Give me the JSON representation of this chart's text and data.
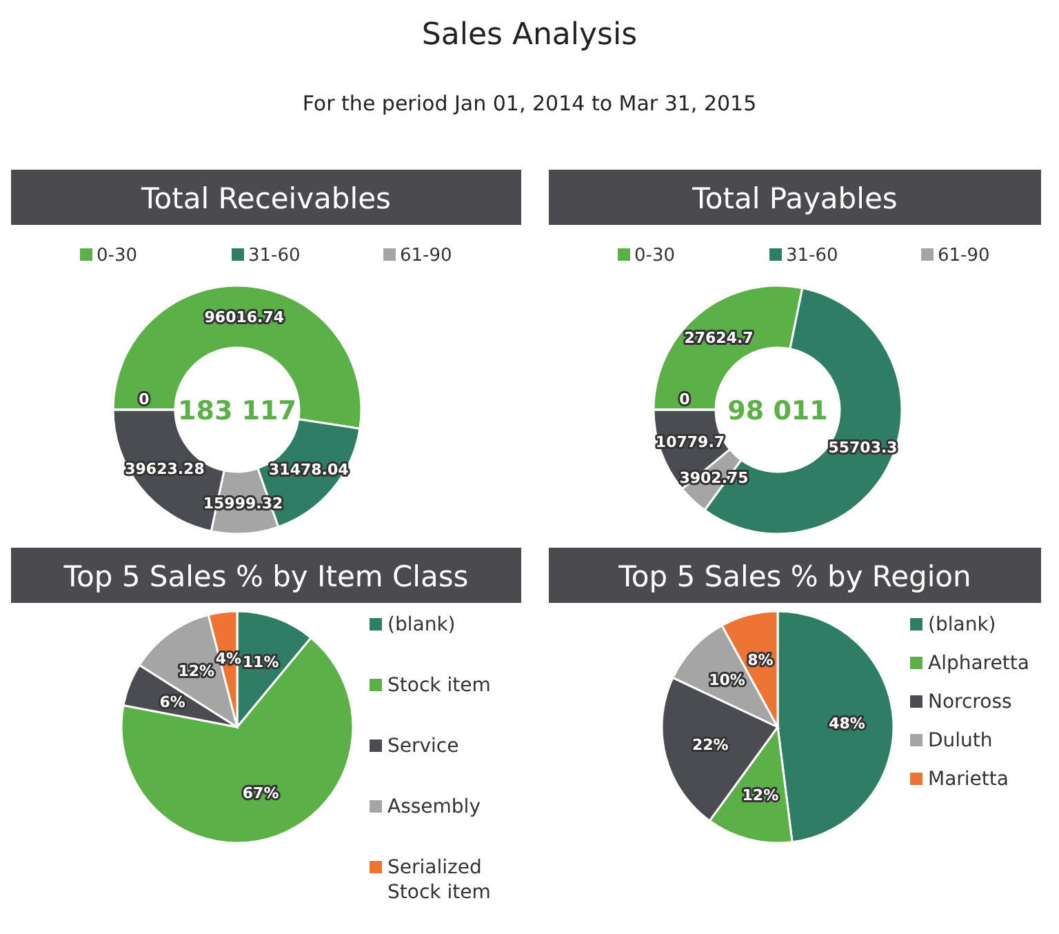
{
  "chart_data": [
    {
      "type": "other",
      "title": "Sales Analysis",
      "subtitle": "For the period Jan 01, 2014 to Mar 31, 2015"
    },
    {
      "type": "donut",
      "title": "Total Receivables",
      "categories": [
        "0-30",
        "31-60",
        "61-90",
        null,
        null
      ],
      "values": [
        96016.74,
        31478.04,
        15999.32,
        39623.28,
        0
      ],
      "colors": [
        "#5bb048",
        "#2e7d64",
        "#a5a5a5",
        "#4b4c52",
        "#ee7434"
      ],
      "value_labels": [
        "96016.74",
        "31478.04",
        "15999.32",
        "39623.28",
        "0"
      ],
      "legend": "top",
      "annotations": [
        "183 117"
      ]
    },
    {
      "type": "donut",
      "title": "Total Payables",
      "categories": [
        "0-30",
        "31-60",
        "61-90",
        null,
        null
      ],
      "values": [
        27624.7,
        55703.3,
        3902.75,
        10779.7,
        0
      ],
      "colors": [
        "#5bb048",
        "#2e7d64",
        "#a5a5a5",
        "#4b4c52",
        "#ee7434"
      ],
      "value_labels": [
        "27624.7",
        "55703.3",
        "3902.75",
        "10779.7",
        "0"
      ],
      "legend": "top",
      "annotations": [
        "98 011"
      ]
    },
    {
      "type": "pie",
      "title": "Top 5 Sales % by Item Class",
      "categories": [
        "(blank)",
        "Stock item",
        "Service",
        "Assembly",
        "Serialized Stock item"
      ],
      "values": [
        11,
        67,
        6,
        12,
        4
      ],
      "colors": [
        "#2e7d64",
        "#5bb048",
        "#4b4c52",
        "#a5a5a5",
        "#ee7434"
      ],
      "value_labels": [
        "11%",
        "67%",
        "6%",
        "12%",
        "4%"
      ],
      "legend": "right"
    },
    {
      "type": "pie",
      "title": "Top 5 Sales % by Region",
      "categories": [
        "(blank)",
        "Alpharetta",
        "Norcross",
        "Duluth",
        "Marietta"
      ],
      "values": [
        48,
        12,
        22,
        10,
        8
      ],
      "colors": [
        "#2e7d64",
        "#5bb048",
        "#4b4c52",
        "#a5a5a5",
        "#ee7434"
      ],
      "value_labels": [
        "48%",
        "12%",
        "22%",
        "10%",
        "8%"
      ],
      "legend": "right"
    }
  ]
}
